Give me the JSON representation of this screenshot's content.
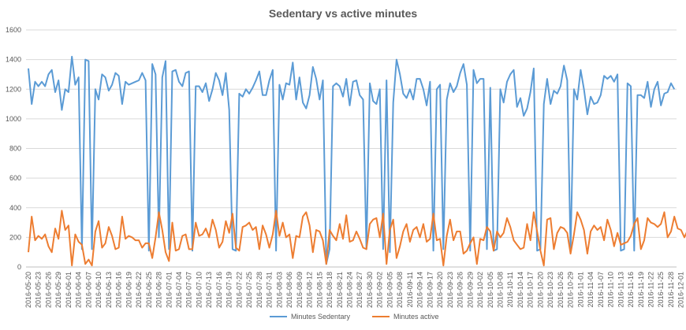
{
  "chart_data": {
    "type": "line",
    "title": "Sedentary vs active minutes",
    "xlabel": "",
    "ylabel": "",
    "ylim": [
      0,
      1600
    ],
    "yticks": [
      0,
      200,
      400,
      600,
      800,
      1000,
      1200,
      1400,
      1600
    ],
    "grid": true,
    "legend_position": "bottom",
    "start_date": "2016-05-20",
    "x_tick_labels": [
      "2016-05-20",
      "2016-05-23",
      "2016-05-26",
      "2016-05-29",
      "2016-06-01",
      "2016-06-04",
      "2016-06-07",
      "2016-06-10",
      "2016-06-13",
      "2016-06-16",
      "2016-06-19",
      "2016-06-22",
      "2016-06-25",
      "2016-06-28",
      "2016-07-01",
      "2016-07-04",
      "2016-07-07",
      "2016-07-10",
      "2016-07-13",
      "2016-07-16",
      "2016-07-19",
      "2016-07-22",
      "2016-07-25",
      "2016-07-28",
      "2016-07-31",
      "2016-08-03",
      "2016-08-06",
      "2016-08-09",
      "2016-08-12",
      "2016-08-15",
      "2016-08-18",
      "2016-08-21",
      "2016-08-24",
      "2016-08-27",
      "2016-08-30",
      "2016-09-02",
      "2016-09-05",
      "2016-09-08",
      "2016-09-11",
      "2016-09-14",
      "2016-09-17",
      "2016-09-20",
      "2016-09-23",
      "2016-09-26",
      "2016-09-29",
      "2016-10-02",
      "2016-10-05",
      "2016-10-08",
      "2016-10-11",
      "2016-10-14",
      "2016-10-17",
      "2016-10-20",
      "2016-10-23",
      "2016-10-26",
      "2016-10-29",
      "2016-11-01",
      "2016-11-04",
      "2016-11-07",
      "2016-11-10",
      "2016-11-13",
      "2016-11-16",
      "2016-11-19",
      "2016-11-22",
      "2016-11-25",
      "2016-11-28",
      "2016-12-01",
      "2016-12-04",
      "2016-12-07",
      "2016-12-10",
      "2016-12-13",
      "2016-12-16",
      "2016-12-19",
      "2016-12-22",
      "2016-12-25",
      "2016-12-28",
      "2016-12-31"
    ],
    "series": [
      {
        "name": "Minutes Sedentary",
        "color": "#5B9BD5",
        "values": [
          1340,
          1100,
          1250,
          1220,
          1250,
          1220,
          1300,
          1330,
          1180,
          1260,
          1060,
          1200,
          1180,
          1420,
          1230,
          1280,
          120,
          1400,
          1390,
          120,
          1200,
          1130,
          1300,
          1280,
          1190,
          1230,
          1310,
          1290,
          1100,
          1250,
          1230,
          1240,
          1250,
          1260,
          1310,
          1260,
          110,
          1370,
          1300,
          200,
          1280,
          1390,
          120,
          1320,
          1330,
          1250,
          1220,
          1310,
          1320,
          110,
          1220,
          1220,
          1180,
          1240,
          1120,
          1200,
          1310,
          1260,
          1160,
          1310,
          1060,
          120,
          110,
          1170,
          1150,
          1200,
          1170,
          1210,
          1260,
          1320,
          1160,
          1160,
          1260,
          1330,
          110,
          1230,
          1130,
          1240,
          1230,
          1380,
          1130,
          1280,
          1110,
          1070,
          1160,
          1350,
          1270,
          1130,
          1260,
          20,
          120,
          1220,
          1240,
          1220,
          1150,
          1270,
          1090,
          1250,
          1260,
          1160,
          1130,
          120,
          1240,
          1120,
          1100,
          1200,
          120,
          1260,
          100,
          1110,
          1400,
          1300,
          1170,
          1140,
          1200,
          1130,
          1270,
          1270,
          1200,
          1090,
          1250,
          110,
          1200,
          1230,
          120,
          1130,
          1240,
          1180,
          1220,
          1310,
          1370,
          1230,
          110,
          1330,
          1240,
          1270,
          1270,
          120,
          1210,
          110,
          120,
          1200,
          1110,
          1250,
          1300,
          1330,
          1080,
          1140,
          1020,
          1070,
          1180,
          1340,
          110,
          120,
          1100,
          1270,
          1100,
          1190,
          1170,
          1220,
          1360,
          1260,
          110,
          1200,
          1130,
          1330,
          1200,
          1030,
          1150,
          1100,
          1110,
          1160,
          1290,
          1270,
          1290,
          1250,
          1300,
          110,
          120,
          1240,
          1220,
          110,
          1160,
          1160,
          1140,
          1250,
          1080,
          1200,
          1250,
          1090,
          1170,
          1180,
          1240,
          1200
        ]
      },
      {
        "name": "Minutes active",
        "color": "#ED7D31",
        "values": [
          100,
          340,
          180,
          210,
          190,
          220,
          140,
          100,
          260,
          190,
          380,
          250,
          280,
          10,
          220,
          170,
          150,
          20,
          50,
          10,
          240,
          310,
          130,
          160,
          270,
          210,
          120,
          130,
          340,
          190,
          210,
          200,
          180,
          180,
          130,
          160,
          160,
          60,
          200,
          370,
          250,
          100,
          40,
          300,
          110,
          120,
          210,
          220,
          120,
          120,
          300,
          210,
          220,
          260,
          200,
          320,
          250,
          130,
          170,
          310,
          230,
          360,
          130,
          110,
          270,
          280,
          300,
          250,
          270,
          120,
          280,
          220,
          130,
          220,
          380,
          210,
          300,
          200,
          220,
          60,
          210,
          200,
          340,
          370,
          280,
          100,
          250,
          240,
          180,
          20,
          250,
          210,
          180,
          290,
          190,
          350,
          170,
          180,
          240,
          190,
          130,
          120,
          290,
          320,
          330,
          200,
          360,
          20,
          250,
          320,
          60,
          140,
          240,
          290,
          170,
          250,
          270,
          200,
          290,
          170,
          190,
          360,
          180,
          190,
          10,
          210,
          320,
          180,
          240,
          240,
          90,
          110,
          160,
          200,
          20,
          190,
          180,
          270,
          240,
          110,
          240,
          200,
          230,
          330,
          270,
          180,
          150,
          120,
          130,
          290,
          180,
          370,
          240,
          110,
          10,
          320,
          330,
          120,
          230,
          270,
          260,
          230,
          90,
          220,
          370,
          320,
          250,
          90,
          240,
          280,
          250,
          270,
          180,
          320,
          250,
          140,
          230,
          150,
          160,
          170,
          210,
          290,
          330,
          120,
          180,
          330,
          300,
          290,
          270,
          290,
          370,
          200,
          240,
          340,
          260,
          250,
          200,
          250
        ]
      }
    ]
  }
}
